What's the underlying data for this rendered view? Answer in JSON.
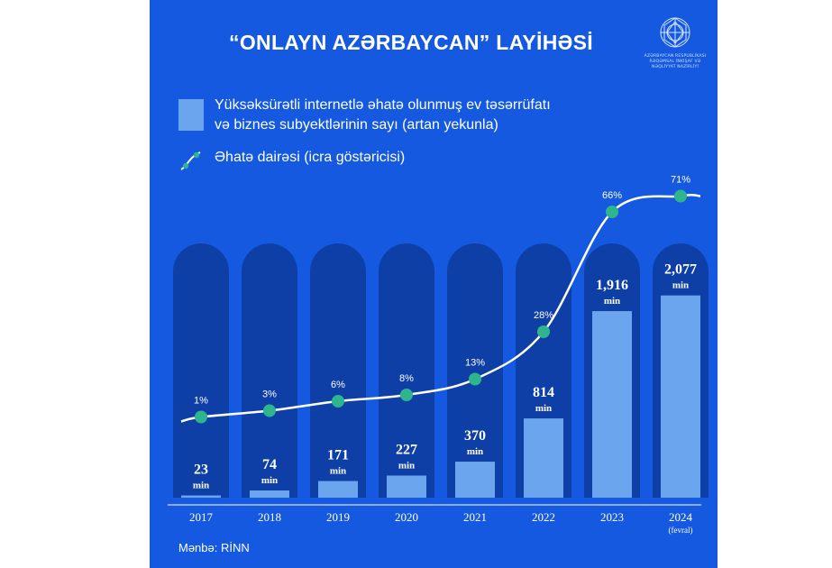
{
  "title": "“ONLAYN AZƏRBAYCAN” LAYİHƏSİ",
  "logo": {
    "text_lines": [
      "AZƏRBAYCAN RESPUBLİKASI",
      "RƏQƏMSAL İNKİŞAF VƏ",
      "NƏQLİYYAT NAZİRLİYİ"
    ]
  },
  "legend": {
    "bars_label_line1": "Yüksəksürətli internetlə əhatə olunmuş ev təsərrüfatı",
    "bars_label_line2": "və biznes subyektlərinin sayı (artan yekunla)",
    "line_label": "Əhatə dairəsi (icra göstəricisi)"
  },
  "source": "Mənbə: RİNN",
  "colors": {
    "background": "#1459e0",
    "track": "#0d3fa6",
    "bar": "#6aa5ee",
    "line": "#ffffff",
    "marker": "#2fb58d"
  },
  "chart_data": {
    "type": "bar",
    "categories": [
      "2017",
      "2018",
      "2019",
      "2020",
      "2021",
      "2022",
      "2023",
      "2024"
    ],
    "category_notes": [
      "",
      "",
      "",
      "",
      "",
      "",
      "",
      "(fevral)"
    ],
    "series": [
      {
        "name": "Yüksəksürətli internetlə əhatə olunmuş ev təsərrüfatı və biznes subyektlərinin sayı (artan yekunla)",
        "type": "bar",
        "values": [
          23,
          74,
          171,
          227,
          370,
          814,
          1916,
          2077
        ],
        "labels": [
          "23",
          "74",
          "171",
          "227",
          "370",
          "814",
          "1,916",
          "2,077"
        ],
        "unit": "min"
      },
      {
        "name": "Əhatə dairəsi (icra göstəricisi)",
        "type": "line",
        "values": [
          1,
          3,
          6,
          8,
          13,
          28,
          66,
          71
        ],
        "labels": [
          "1%",
          "3%",
          "6%",
          "8%",
          "13%",
          "28%",
          "66%",
          "71%"
        ]
      }
    ]
  }
}
